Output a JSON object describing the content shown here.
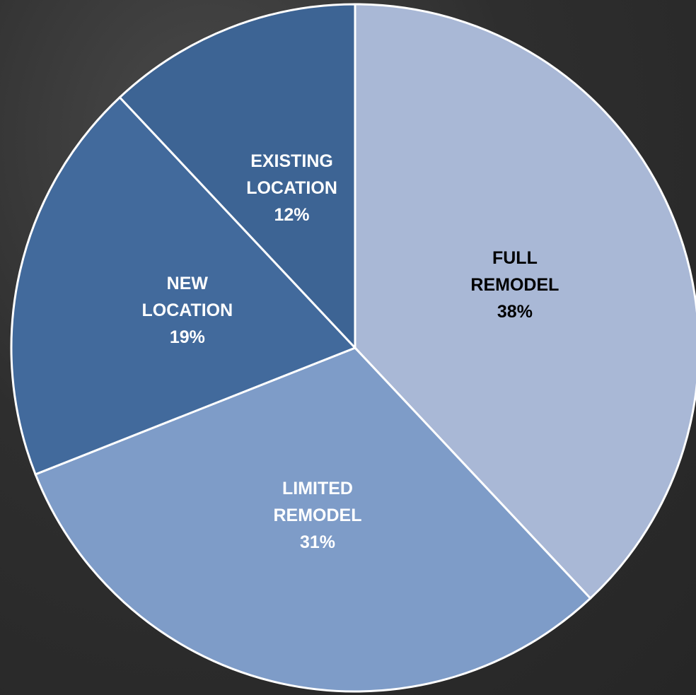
{
  "chart_data": {
    "type": "pie",
    "categories": [
      "FULL REMODEL",
      "LIMITED REMODEL",
      "NEW LOCATION",
      "EXISTING LOCATION"
    ],
    "values": [
      38,
      31,
      19,
      12
    ],
    "value_labels": [
      "38%",
      "31%",
      "19%",
      "12%"
    ],
    "colors": [
      "#a9b8d6",
      "#7e9cc8",
      "#426a9c",
      "#3d6494"
    ],
    "label_colors": [
      "#000000",
      "#ffffff",
      "#ffffff",
      "#ffffff"
    ]
  }
}
